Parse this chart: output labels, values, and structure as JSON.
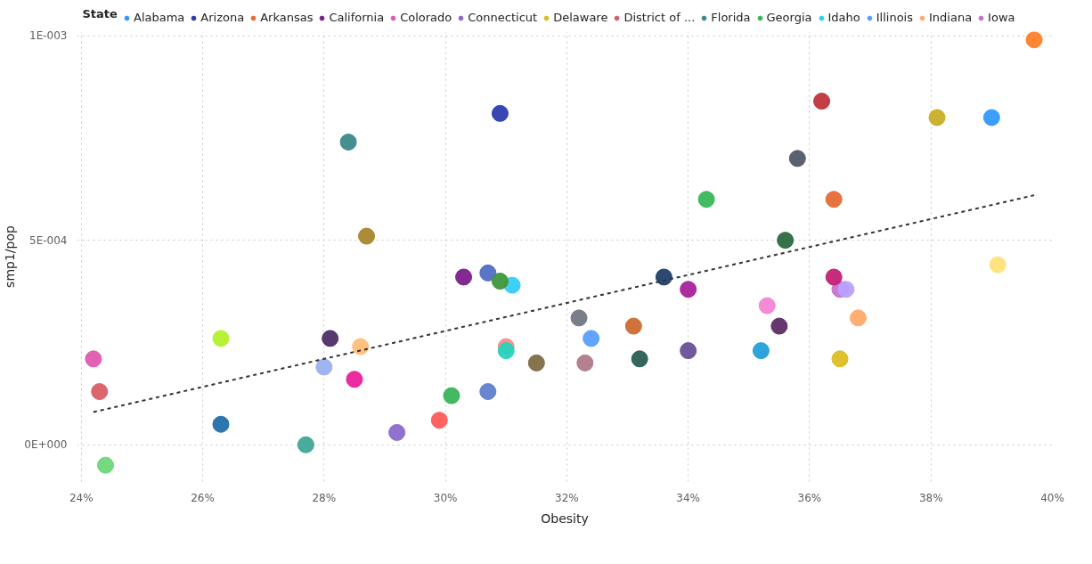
{
  "chart_data": {
    "type": "scatter",
    "xlabel": "Obesity",
    "ylabel": "smp1/pop",
    "legend_title": "State",
    "legend": "top",
    "grid": true,
    "marker": "circle",
    "xlim": [
      23.93,
      40.0
    ],
    "ylim": [
      -9e-05,
      0.00101
    ],
    "xticks": [
      {
        "value": 24,
        "label": "24%"
      },
      {
        "value": 26,
        "label": "26%"
      },
      {
        "value": 28,
        "label": "28%"
      },
      {
        "value": 30,
        "label": "30%"
      },
      {
        "value": 32,
        "label": "32%"
      },
      {
        "value": 34,
        "label": "34%"
      },
      {
        "value": 36,
        "label": "36%"
      },
      {
        "value": 38,
        "label": "38%"
      },
      {
        "value": 40,
        "label": "40%"
      }
    ],
    "yticks": [
      {
        "value": 0,
        "label": "0E+000"
      },
      {
        "value": 0.0005,
        "label": "5E-004"
      },
      {
        "value": 0.001,
        "label": "1E-003"
      }
    ],
    "series": [
      {
        "name": "Alabama",
        "color": "#3399ff",
        "x": [
          39.0
        ],
        "values": [
          0.0008
        ]
      },
      {
        "name": "Arizona",
        "color": "#2e3dae",
        "x": [
          30.9
        ],
        "values": [
          0.00081
        ]
      },
      {
        "name": "Arkansas",
        "color": "#e66c37",
        "x": [
          36.4
        ],
        "values": [
          0.0006
        ]
      },
      {
        "name": "California",
        "color": "#7c1f8c",
        "x": [
          30.3
        ],
        "values": [
          0.00041
        ]
      },
      {
        "name": "Colorado",
        "color": "#e05ab0",
        "x": [
          24.2
        ],
        "values": [
          0.00021
        ]
      },
      {
        "name": "Connecticut",
        "color": "#8a6bcb",
        "x": [
          29.2
        ],
        "values": [
          3e-05
        ]
      },
      {
        "name": "Delaware",
        "color": "#ddbd22",
        "x": [
          36.5
        ],
        "values": [
          0.00021
        ]
      },
      {
        "name": "District of ...",
        "color": "#d95f66",
        "x": [
          24.3
        ],
        "values": [
          0.00013
        ]
      },
      {
        "name": "Florida",
        "color": "#3a8a8a",
        "x": [
          28.4
        ],
        "values": [
          0.00074
        ]
      },
      {
        "name": "Georgia",
        "color": "#3ab65a",
        "x": [
          34.3
        ],
        "values": [
          0.0006
        ]
      },
      {
        "name": "Idaho",
        "color": "#36ccf5",
        "x": [
          31.1
        ],
        "values": [
          0.00039
        ]
      },
      {
        "name": "Illinois",
        "color": "#58a0ff",
        "x": [
          32.4
        ],
        "values": [
          0.00026
        ]
      },
      {
        "name": "Indiana",
        "color": "#ffab6b",
        "x": [
          36.8
        ],
        "values": [
          0.00031
        ]
      },
      {
        "name": "Iowa",
        "color": "#c772cc",
        "x": [
          36.5
        ],
        "values": [
          0.00038
        ]
      },
      {
        "x": [
          39.7,
          38.1,
          36.2,
          35.8,
          35.6,
          28.7,
          39.1,
          30.7,
          30.9,
          33.6,
          34.0,
          36.4,
          36.6,
          35.3,
          32.2,
          33.1,
          35.5,
          26.3,
          28.1,
          28.6,
          31.0,
          31.0,
          31.5,
          32.3,
          33.2,
          34.0,
          35.2,
          28.0,
          28.5,
          30.7,
          30.1,
          26.3,
          29.9,
          27.7,
          24.4
        ],
        "values": [
          0.00099,
          0.0008,
          0.00084,
          0.0007,
          0.0005,
          0.00051,
          0.00044,
          0.00042,
          0.0004,
          0.00041,
          0.00038,
          0.00041,
          0.00038,
          0.00034,
          0.00031,
          0.00029,
          0.00029,
          0.00026,
          0.00026,
          0.00024,
          0.00024,
          0.00023,
          0.0002,
          0.0002,
          0.00021,
          0.00023,
          0.00023,
          0.00019,
          0.00016,
          0.00013,
          0.00012,
          5e-05,
          6e-05,
          0.0,
          -5e-05
        ],
        "colors": [
          "#ff7f2a",
          "#c9ae26",
          "#c0353c",
          "#525866",
          "#2a6a3e",
          "#a8862e",
          "#ffe27a",
          "#4f6ec4",
          "#3f963a",
          "#213f6a",
          "#a8229a",
          "#c22275",
          "#b8a0ff",
          "#f485d5",
          "#727884",
          "#ce6a30",
          "#5e2c66",
          "#b5f02e",
          "#4d2f66",
          "#ffbe78",
          "#ff8a8a",
          "#26d4bd",
          "#7d6e44",
          "#b07a88",
          "#2b5e52",
          "#6a5098",
          "#22a0da",
          "#9bb0ee",
          "#ea209a",
          "#5f80cc",
          "#38b55a",
          "#2270ad",
          "#ff5a5a",
          "#3fa696",
          "#6dd879"
        ]
      },
      {
        "type": "line",
        "color": "#333333",
        "line_style": "dashed",
        "marker": "none",
        "x": [
          24.2,
          39.7
        ],
        "values": [
          8e-05,
          0.00061
        ]
      }
    ]
  }
}
